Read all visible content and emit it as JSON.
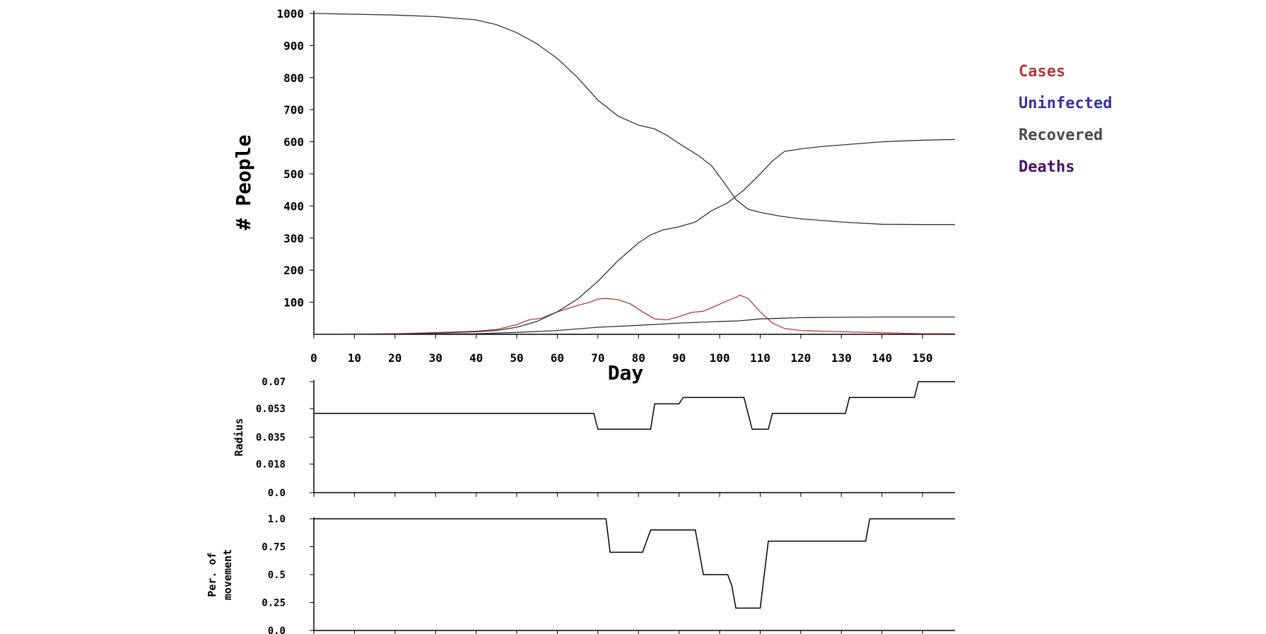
{
  "chart_data": [
    {
      "type": "line",
      "xlabel": "Day",
      "ylabel": "# People",
      "xlim": [
        0,
        158
      ],
      "ylim": [
        0,
        1000
      ],
      "x_ticks": [
        0,
        10,
        20,
        30,
        40,
        50,
        60,
        70,
        80,
        90,
        100,
        110,
        120,
        130,
        140,
        150
      ],
      "y_ticks": [
        100,
        200,
        300,
        400,
        500,
        600,
        700,
        800,
        900,
        1000
      ],
      "legend_position": "right",
      "series": [
        {
          "name": "Cases",
          "color": "#b03a3a",
          "points": [
            [
              0,
              0
            ],
            [
              20,
              2
            ],
            [
              30,
              5
            ],
            [
              40,
              10
            ],
            [
              45,
              15
            ],
            [
              50,
              30
            ],
            [
              53,
              45
            ],
            [
              56,
              50
            ],
            [
              60,
              70
            ],
            [
              65,
              90
            ],
            [
              68,
              100
            ],
            [
              70,
              110
            ],
            [
              72,
              112
            ],
            [
              75,
              108
            ],
            [
              78,
              95
            ],
            [
              81,
              70
            ],
            [
              84,
              48
            ],
            [
              87,
              45
            ],
            [
              90,
              55
            ],
            [
              93,
              68
            ],
            [
              96,
              72
            ],
            [
              99,
              88
            ],
            [
              102,
              105
            ],
            [
              104,
              115
            ],
            [
              105,
              122
            ],
            [
              107,
              112
            ],
            [
              110,
              70
            ],
            [
              113,
              35
            ],
            [
              116,
              18
            ],
            [
              120,
              12
            ],
            [
              125,
              10
            ],
            [
              130,
              8
            ],
            [
              140,
              5
            ],
            [
              150,
              2
            ],
            [
              158,
              2
            ]
          ]
        },
        {
          "name": "Uninfected",
          "color": "#333333",
          "points": [
            [
              0,
              1000
            ],
            [
              20,
              995
            ],
            [
              30,
              990
            ],
            [
              40,
              980
            ],
            [
              45,
              965
            ],
            [
              50,
              940
            ],
            [
              55,
              905
            ],
            [
              60,
              860
            ],
            [
              65,
              800
            ],
            [
              70,
              730
            ],
            [
              75,
              680
            ],
            [
              80,
              652
            ],
            [
              84,
              640
            ],
            [
              87,
              620
            ],
            [
              90,
              595
            ],
            [
              95,
              555
            ],
            [
              98,
              525
            ],
            [
              101,
              475
            ],
            [
              104,
              420
            ],
            [
              107,
              390
            ],
            [
              110,
              380
            ],
            [
              115,
              368
            ],
            [
              120,
              360
            ],
            [
              130,
              350
            ],
            [
              140,
              343
            ],
            [
              150,
              342
            ],
            [
              158,
              342
            ]
          ]
        },
        {
          "name": "Recovered",
          "color": "#333333",
          "points": [
            [
              0,
              0
            ],
            [
              20,
              1
            ],
            [
              30,
              4
            ],
            [
              40,
              8
            ],
            [
              45,
              12
            ],
            [
              50,
              22
            ],
            [
              55,
              40
            ],
            [
              60,
              70
            ],
            [
              65,
              110
            ],
            [
              70,
              165
            ],
            [
              75,
              230
            ],
            [
              80,
              285
            ],
            [
              83,
              310
            ],
            [
              86,
              325
            ],
            [
              90,
              335
            ],
            [
              94,
              350
            ],
            [
              98,
              385
            ],
            [
              102,
              410
            ],
            [
              106,
              450
            ],
            [
              110,
              500
            ],
            [
              113,
              540
            ],
            [
              116,
              570
            ],
            [
              120,
              578
            ],
            [
              125,
              585
            ],
            [
              130,
              590
            ],
            [
              140,
              600
            ],
            [
              150,
              605
            ],
            [
              158,
              607
            ]
          ]
        },
        {
          "name": "Deaths",
          "color": "#333333",
          "points": [
            [
              0,
              0
            ],
            [
              40,
              2
            ],
            [
              50,
              6
            ],
            [
              60,
              12
            ],
            [
              70,
              22
            ],
            [
              80,
              28
            ],
            [
              90,
              35
            ],
            [
              100,
              40
            ],
            [
              105,
              42
            ],
            [
              110,
              48
            ],
            [
              115,
              50
            ],
            [
              120,
              52
            ],
            [
              130,
              53
            ],
            [
              140,
              54
            ],
            [
              158,
              54
            ]
          ]
        }
      ]
    },
    {
      "type": "line",
      "xlabel": "",
      "ylabel": "Radius",
      "xlim": [
        0,
        158
      ],
      "ylim": [
        0,
        0.07
      ],
      "y_ticks": [
        "0.0",
        "0.018",
        "0.035",
        "0.053",
        "0.07"
      ],
      "series": [
        {
          "name": "",
          "color": "#000000",
          "points": [
            [
              0,
              0.05
            ],
            [
              69,
              0.05
            ],
            [
              70,
              0.04
            ],
            [
              83,
              0.04
            ],
            [
              84,
              0.056
            ],
            [
              90,
              0.056
            ],
            [
              91,
              0.06
            ],
            [
              106,
              0.06
            ],
            [
              108,
              0.04
            ],
            [
              112,
              0.04
            ],
            [
              113,
              0.05
            ],
            [
              131,
              0.05
            ],
            [
              132,
              0.06
            ],
            [
              148,
              0.06
            ],
            [
              149,
              0.07
            ],
            [
              158,
              0.07
            ]
          ]
        }
      ]
    },
    {
      "type": "line",
      "xlabel": "",
      "ylabel": "Per. of movement",
      "xlim": [
        0,
        158
      ],
      "ylim": [
        0,
        1.0
      ],
      "y_ticks": [
        "0.0",
        "0.25",
        "0.5",
        "0.75",
        "1.0"
      ],
      "series": [
        {
          "name": "",
          "color": "#000000",
          "points": [
            [
              0,
              1.0
            ],
            [
              72,
              1.0
            ],
            [
              73,
              0.7
            ],
            [
              81,
              0.7
            ],
            [
              83,
              0.9
            ],
            [
              94,
              0.9
            ],
            [
              96,
              0.5
            ],
            [
              102,
              0.5
            ],
            [
              103,
              0.4
            ],
            [
              104,
              0.2
            ],
            [
              110,
              0.2
            ],
            [
              112,
              0.8
            ],
            [
              136,
              0.8
            ],
            [
              137,
              1.0
            ],
            [
              158,
              1.0
            ]
          ]
        }
      ]
    }
  ],
  "legend": [
    {
      "label": "Cases",
      "color": "#b03a3a"
    },
    {
      "label": "Uninfected",
      "color": "#3636a0"
    },
    {
      "label": "Recovered",
      "color": "#4a4a4a"
    },
    {
      "label": "Deaths",
      "color": "#4a0f6a"
    }
  ]
}
